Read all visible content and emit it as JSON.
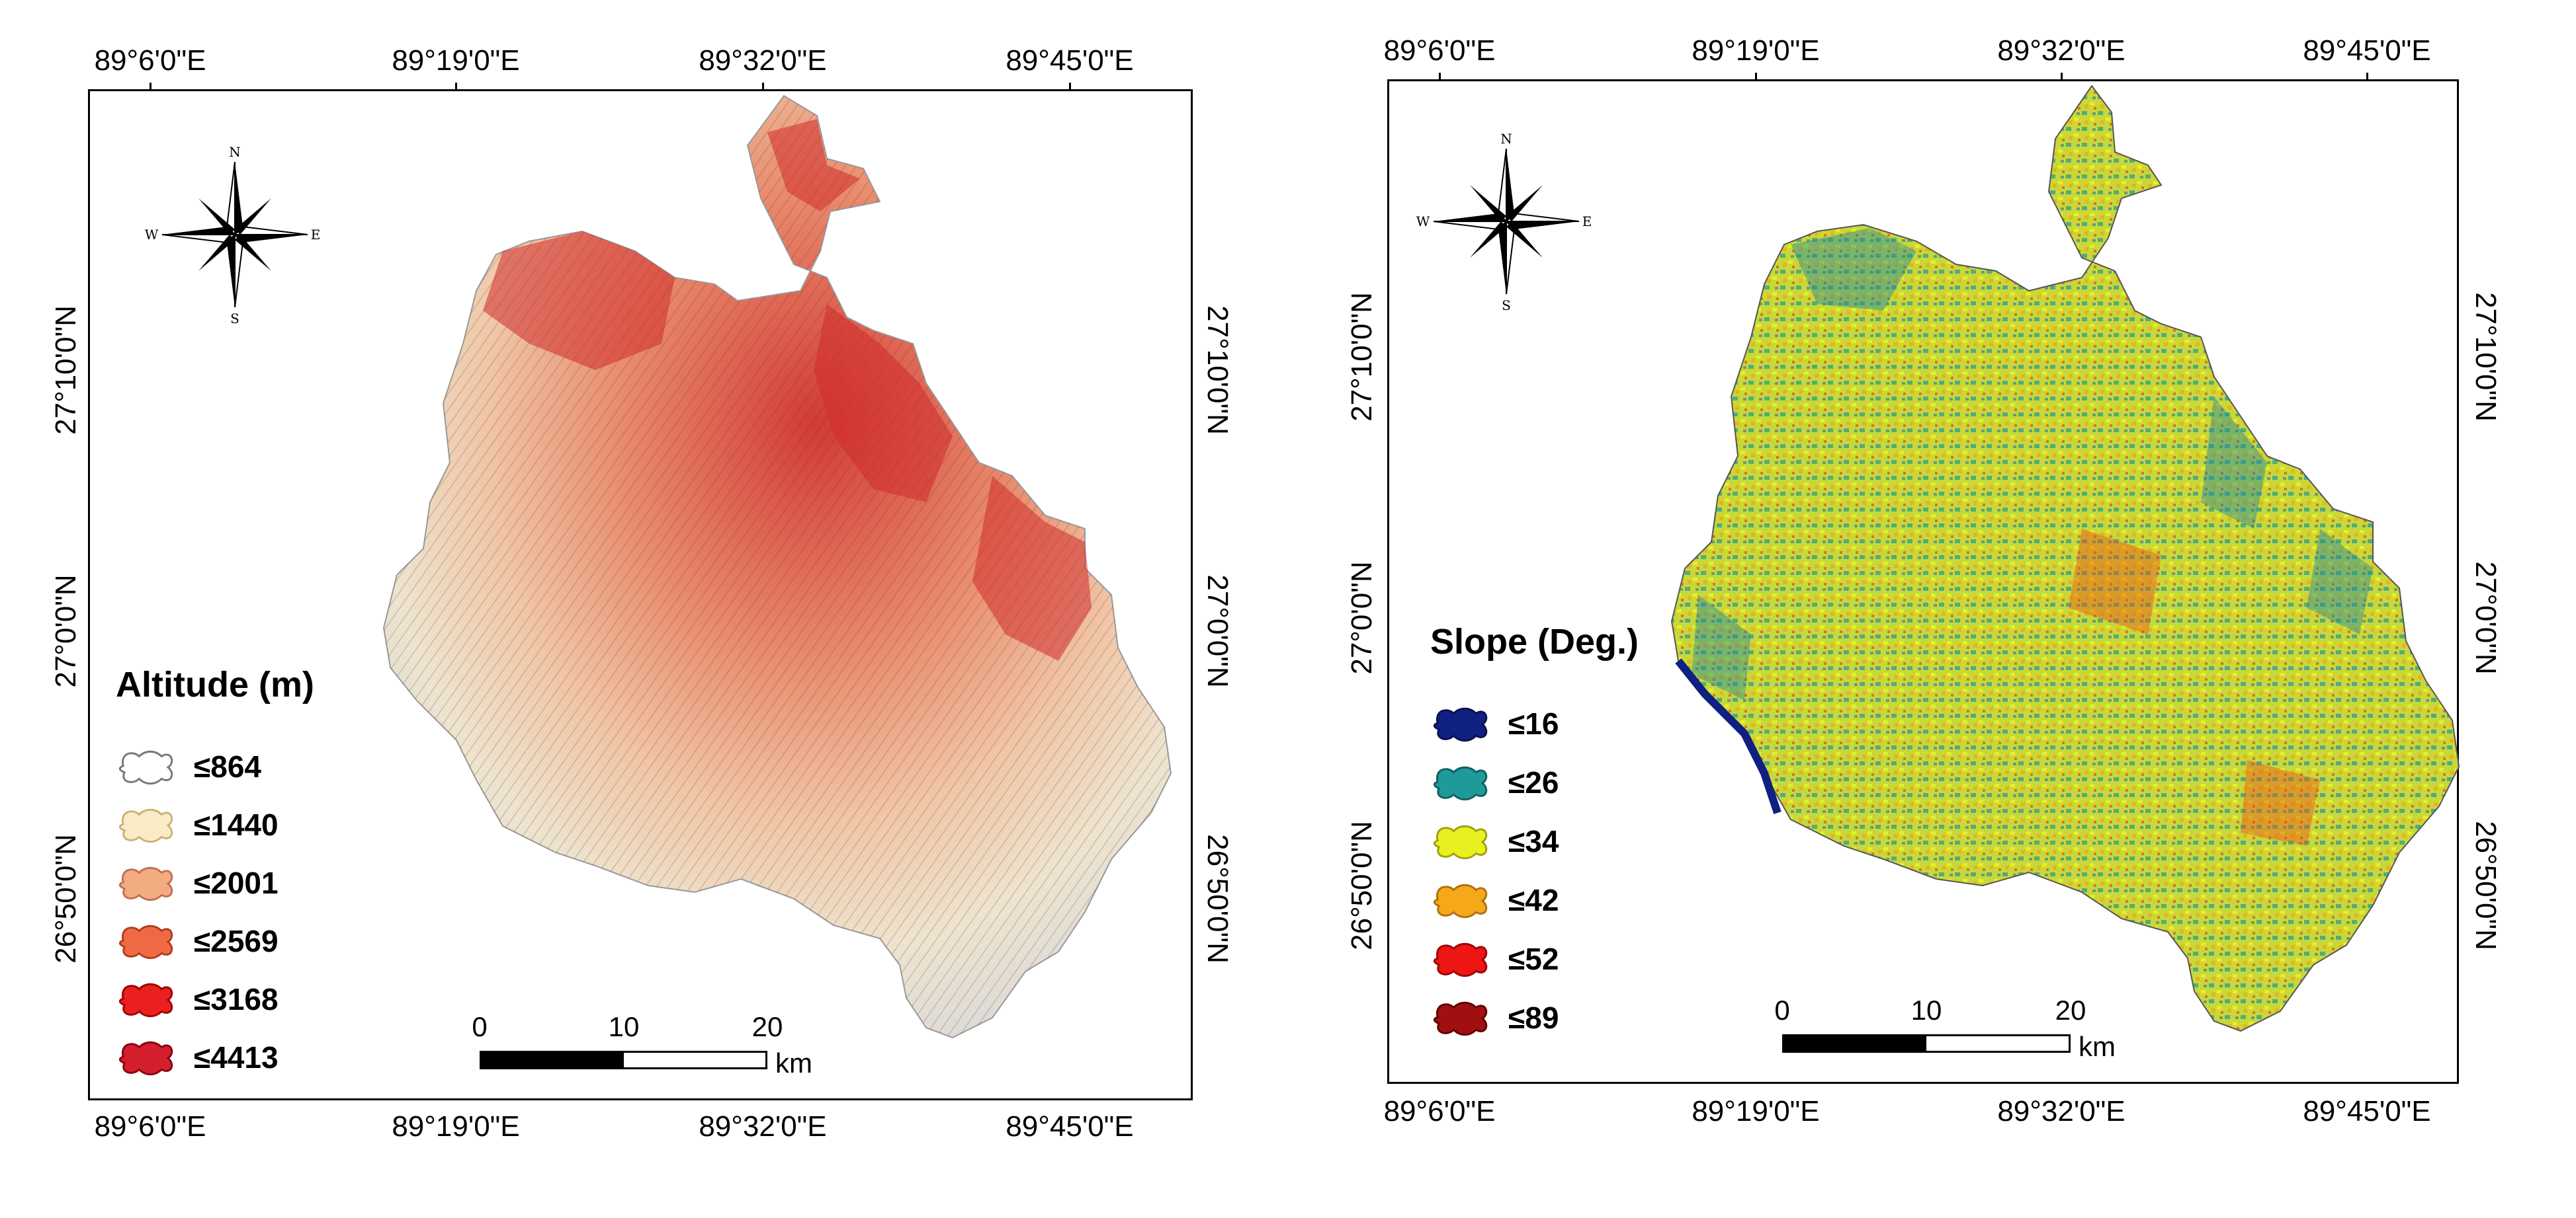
{
  "altitude_map": {
    "legend_title": "Altitude (m)",
    "legend_items": [
      {
        "label": "≤864",
        "color": "#ffffff",
        "border": "#777777"
      },
      {
        "label": "≤1440",
        "color": "#faebc6",
        "border": "#c9b27a"
      },
      {
        "label": "≤2001",
        "color": "#f3ab80",
        "border": "#c07050"
      },
      {
        "label": "≤2569",
        "color": "#ef6a44",
        "border": "#b03c20"
      },
      {
        "label": "≤3168",
        "color": "#ea2020",
        "border": "#a00000"
      },
      {
        "label": "≤4413",
        "color": "#d41f2c",
        "border": "#8a0010"
      }
    ],
    "lon_ticks": [
      "89°6'0\"E",
      "89°19'0\"E",
      "89°32'0\"E",
      "89°45'0\"E"
    ],
    "lat_ticks": [
      "27°10'0\"N",
      "27°0'0\"N",
      "26°50'0\"N"
    ],
    "scale": {
      "labels": [
        "0",
        "10",
        "20"
      ],
      "unit": "km"
    },
    "compass": {
      "n": "N",
      "s": "S",
      "e": "E",
      "w": "W"
    }
  },
  "slope_map": {
    "legend_title": "Slope (Deg.)",
    "legend_items": [
      {
        "label": "≤16",
        "color": "#102080",
        "border": "#081050"
      },
      {
        "label": "≤26",
        "color": "#1f9a9a",
        "border": "#106060"
      },
      {
        "label": "≤34",
        "color": "#e8f020",
        "border": "#a0a010"
      },
      {
        "label": "≤42",
        "color": "#f5a818",
        "border": "#b07010"
      },
      {
        "label": "≤52",
        "color": "#ee1515",
        "border": "#a00000"
      },
      {
        "label": "≤89",
        "color": "#a01010",
        "border": "#600000"
      }
    ],
    "lon_ticks": [
      "89°6'0\"E",
      "89°19'0\"E",
      "89°32'0\"E",
      "89°45'0\"E"
    ],
    "lat_ticks": [
      "27°10'0\"N",
      "27°0'0\"N",
      "26°50'0\"N"
    ],
    "scale": {
      "labels": [
        "0",
        "10",
        "20"
      ],
      "unit": "km"
    },
    "compass": {
      "n": "N",
      "s": "S",
      "e": "E",
      "w": "W"
    }
  }
}
